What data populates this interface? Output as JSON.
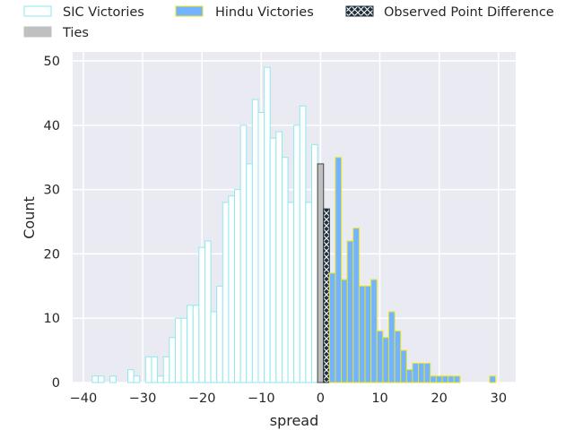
{
  "chart_data": {
    "type": "bar",
    "title": "",
    "xlabel": "spread",
    "ylabel": "Count",
    "xlim": [
      -41.8,
      32.9
    ],
    "ylim": [
      0,
      51.4
    ],
    "xticks": [
      -40,
      -30,
      -20,
      -10,
      0,
      10,
      20,
      30
    ],
    "yticks": [
      0,
      10,
      20,
      30,
      40,
      50
    ],
    "grid": true,
    "legend_placement": "top",
    "bin_width": 1,
    "series": [
      {
        "name": "SIC Victories",
        "fill": "#ffffff",
        "edge": "#8ee8ee",
        "x": [
          -38,
          -37,
          -35,
          -32,
          -31,
          -29,
          -28,
          -27,
          -26,
          -25,
          -24,
          -23,
          -22,
          -21,
          -20,
          -19,
          -18,
          -17,
          -16,
          -15,
          -14,
          -13,
          -12,
          -11,
          -10,
          -9,
          -8,
          -7,
          -6,
          -5,
          -4,
          -3,
          -2,
          -1
        ],
        "values": [
          1,
          1,
          1,
          2,
          1,
          4,
          4,
          1,
          4,
          7,
          10,
          10,
          12,
          12,
          21,
          22,
          11,
          15,
          28,
          29,
          30,
          40,
          34,
          44,
          42,
          49,
          38,
          39,
          35,
          28,
          40,
          43,
          28,
          37
        ]
      },
      {
        "name": "Ties",
        "fill": "#c0c0c0",
        "edge": "#444444",
        "x": [
          0
        ],
        "values": [
          34
        ]
      },
      {
        "name": "Observed Point Difference",
        "fill": "#1f2d3d",
        "edge": "#1f2d3d",
        "hatch": "x",
        "x": [
          1
        ],
        "values": [
          27
        ]
      },
      {
        "name": "Hindu Victories",
        "fill": "#74b3ff",
        "edge": "#e6e61e",
        "x": [
          2,
          3,
          4,
          5,
          6,
          7,
          8,
          9,
          10,
          11,
          12,
          13,
          14,
          15,
          16,
          17,
          18,
          19,
          20,
          21,
          22,
          23,
          29
        ],
        "values": [
          17,
          35,
          16,
          22,
          24,
          15,
          15,
          16,
          8,
          7,
          11,
          8,
          5,
          2,
          3,
          3,
          3,
          1,
          1,
          1,
          1,
          1,
          1
        ]
      }
    ],
    "legend": [
      "SIC Victories",
      "Hindu Victories",
      "Observed Point Difference",
      "Ties"
    ]
  }
}
